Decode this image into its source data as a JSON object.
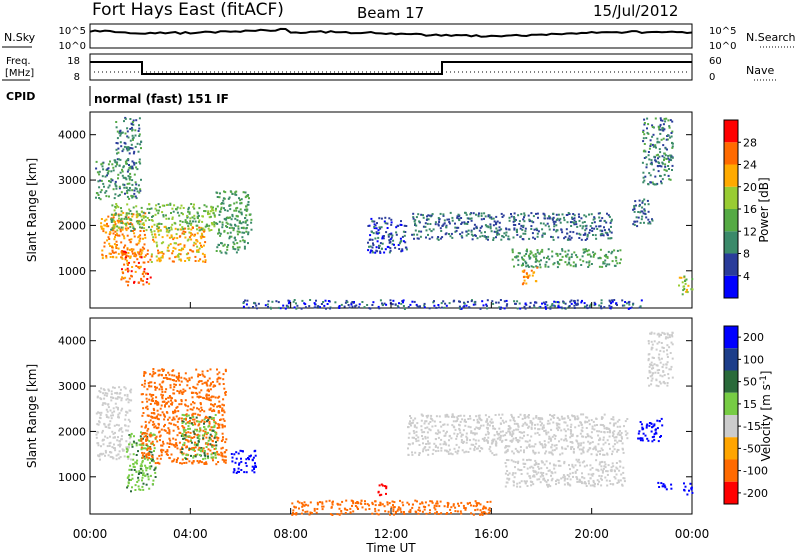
{
  "header": {
    "radar": "Fort Hays East (fitACF)",
    "beam": "Beam 17",
    "date": "15/Jul/2012"
  },
  "top_panel": {
    "left_label": "N.Sky",
    "left_ticks": [
      "10^5",
      "10^0"
    ],
    "right_label": "N.Search",
    "right_ticks": [
      "10^5",
      "10^0"
    ]
  },
  "freq_panel": {
    "left_label_1": "Freq.",
    "left_label_2": "[MHz]",
    "left_ticks": [
      "18",
      "8"
    ],
    "right_label": "Nave",
    "right_ticks": [
      "60",
      "0"
    ]
  },
  "cpid": {
    "label": "CPID",
    "value": "normal (fast) 151 IF"
  },
  "xaxis": {
    "label": "Time UT",
    "ticks": [
      "00:00",
      "04:00",
      "08:00",
      "12:00",
      "16:00",
      "20:00",
      "00:00"
    ]
  },
  "colors": {
    "power": [
      "#0000ff",
      "#2a3c9a",
      "#3b8a6a",
      "#55aa44",
      "#99cc33",
      "#ffaa00",
      "#ff6a00",
      "#ff0000"
    ],
    "velocity": [
      "#0000ff",
      "#1d3e8a",
      "#2a6a3a",
      "#77cc44",
      "#cccccc",
      "#ffa500",
      "#ff6a00",
      "#ff0000"
    ]
  },
  "chart_data": [
    {
      "type": "heatmap",
      "ylabel": "Slant Range [km]",
      "xlabel": "",
      "yticks": [
        "1000",
        "2000",
        "3000",
        "4000"
      ],
      "ylim": [
        180,
        4500
      ],
      "xlim": [
        0,
        24
      ],
      "colorbar": {
        "label": "Power [dB]",
        "ticks": [
          "4",
          "8",
          "12",
          "16",
          "20",
          "24",
          "28"
        ],
        "range": [
          0,
          32
        ]
      },
      "regions": [
        {
          "t0": 0.4,
          "t1": 2.2,
          "r0": 1300,
          "r1": 2300,
          "value": 24
        },
        {
          "t0": 1.2,
          "t1": 2.4,
          "r0": 700,
          "r1": 1500,
          "value": 26
        },
        {
          "t0": 2.4,
          "t1": 4.6,
          "r0": 1200,
          "r1": 2000,
          "value": 22
        },
        {
          "t0": 0.8,
          "t1": 5.0,
          "r0": 1900,
          "r1": 2500,
          "value": 15
        },
        {
          "t0": 5.0,
          "t1": 6.4,
          "r0": 1400,
          "r1": 2800,
          "value": 12
        },
        {
          "t0": 0.2,
          "t1": 2.0,
          "r0": 2600,
          "r1": 3500,
          "value": 11
        },
        {
          "t0": 1.0,
          "t1": 2.0,
          "r0": 3600,
          "r1": 4400,
          "value": 9
        },
        {
          "t0": 11.0,
          "t1": 12.6,
          "r0": 1400,
          "r1": 2200,
          "value": 6
        },
        {
          "t0": 12.8,
          "t1": 20.8,
          "r0": 1700,
          "r1": 2300,
          "value": 8
        },
        {
          "t0": 16.8,
          "t1": 21.2,
          "r0": 1100,
          "r1": 1500,
          "value": 12
        },
        {
          "t0": 17.2,
          "t1": 17.8,
          "r0": 700,
          "r1": 1100,
          "value": 24
        },
        {
          "t0": 21.6,
          "t1": 22.4,
          "r0": 2000,
          "r1": 2600,
          "value": 8
        },
        {
          "t0": 22.0,
          "t1": 23.2,
          "r0": 2900,
          "r1": 4400,
          "value": 10
        },
        {
          "t0": 23.4,
          "t1": 24.0,
          "r0": 500,
          "r1": 900,
          "value": 18
        },
        {
          "t0": 6.0,
          "t1": 22.0,
          "r0": 180,
          "r1": 380,
          "value": 6
        }
      ]
    },
    {
      "type": "heatmap",
      "ylabel": "Slant Range [km]",
      "xlabel": "Time UT",
      "yticks": [
        "1000",
        "2000",
        "3000",
        "4000"
      ],
      "ylim": [
        180,
        4500
      ],
      "xlim": [
        0,
        24
      ],
      "colorbar": {
        "label": "Velocity [m s^-1]",
        "ticks": [
          "200",
          "100",
          "50",
          "15",
          "-15",
          "-50",
          "-100",
          "-200"
        ]
      },
      "regions": [
        {
          "t0": 0.2,
          "t1": 1.6,
          "r0": 1400,
          "r1": 3000,
          "value": 0
        },
        {
          "t0": 1.4,
          "t1": 2.6,
          "r0": 700,
          "r1": 2000,
          "value": 30
        },
        {
          "t0": 2.0,
          "t1": 5.4,
          "r0": 1300,
          "r1": 3400,
          "value": -60
        },
        {
          "t0": 3.6,
          "t1": 5.0,
          "r0": 1400,
          "r1": 2400,
          "value": 30
        },
        {
          "t0": 5.6,
          "t1": 6.6,
          "r0": 1100,
          "r1": 1600,
          "value": 220
        },
        {
          "t0": 11.4,
          "t1": 11.8,
          "r0": 600,
          "r1": 900,
          "value": -220
        },
        {
          "t0": 12.6,
          "t1": 21.4,
          "r0": 1500,
          "r1": 2400,
          "value": 0
        },
        {
          "t0": 16.5,
          "t1": 21.3,
          "r0": 800,
          "r1": 1400,
          "value": 0
        },
        {
          "t0": 21.8,
          "t1": 22.8,
          "r0": 1800,
          "r1": 2300,
          "value": 220
        },
        {
          "t0": 22.2,
          "t1": 23.2,
          "r0": 3000,
          "r1": 4200,
          "value": 0
        },
        {
          "t0": 22.6,
          "t1": 23.2,
          "r0": 700,
          "r1": 900,
          "value": 220
        },
        {
          "t0": 23.6,
          "t1": 24.0,
          "r0": 600,
          "r1": 900,
          "value": 220
        },
        {
          "t0": 8.0,
          "t1": 16.0,
          "r0": 180,
          "r1": 500,
          "value": -60
        }
      ]
    }
  ]
}
